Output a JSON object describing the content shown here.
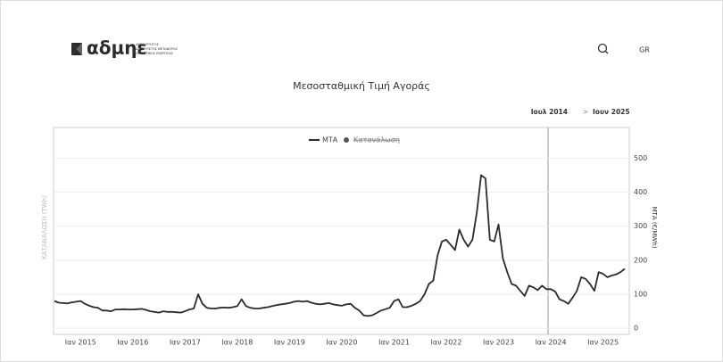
{
  "header": {
    "logo": "αδμηε",
    "logo_lines": [
      "ΑΝΕΞΑΡΤΗΤΟΣ",
      "ΔΙΑΧΕΙΡΙΣΤΗΣ ΜΕΤΑΦΟΡΑΣ",
      "ΗΛΕΚΤΡΙΚΗΣ ΕΝΕΡΓΕΙΑΣ"
    ],
    "language": "GR"
  },
  "range": {
    "from": "Ιουλ 2014",
    "separator": ">",
    "to": "Ιουν 2025"
  },
  "chart_data": {
    "type": "line",
    "title": "Μεσοσταθμική Τιμή Αγοράς",
    "y_label": "ΜΤΑ (€/MWh)",
    "y2_label": "ΚΑΤΑΝΑΛΩΣΗ (TWh)",
    "hidden_series": [
      "Κατανάλωση"
    ],
    "ylim": [
      -18,
      590
    ],
    "yticks": [
      0,
      100,
      200,
      300,
      400,
      500
    ],
    "grid": true,
    "categories": [
      null,
      null,
      null,
      null,
      null,
      null,
      "Ιαν 2015",
      null,
      null,
      null,
      null,
      null,
      null,
      null,
      null,
      null,
      null,
      null,
      "Ιαν 2016",
      null,
      null,
      null,
      null,
      null,
      null,
      null,
      null,
      null,
      null,
      null,
      "Ιαν 2017",
      null,
      null,
      null,
      null,
      null,
      null,
      null,
      null,
      null,
      null,
      null,
      "Ιαν 2018",
      null,
      null,
      null,
      null,
      null,
      null,
      null,
      null,
      null,
      null,
      null,
      "Ιαν 2019",
      null,
      null,
      null,
      null,
      null,
      null,
      null,
      null,
      null,
      null,
      null,
      "Ιαν 2020",
      null,
      null,
      null,
      null,
      null,
      null,
      null,
      null,
      null,
      null,
      null,
      "Ιαν 2021",
      null,
      null,
      null,
      null,
      null,
      null,
      null,
      null,
      null,
      null,
      null,
      "Ιαν 2022",
      null,
      null,
      null,
      null,
      null,
      null,
      null,
      null,
      null,
      null,
      null,
      "Ιαν 2023",
      null,
      null,
      null,
      null,
      null,
      null,
      null,
      null,
      null,
      null,
      null,
      "Ιαν 2024",
      null,
      null,
      null,
      null,
      null,
      null,
      null,
      null,
      null,
      null,
      null,
      "Ιαν 2025",
      null,
      null,
      null,
      null,
      null
    ],
    "series": [
      {
        "name": "ΜΤΑ",
        "color": "#2b2b2b",
        "values": [
          80,
          75,
          74,
          73,
          76,
          78,
          80,
          72,
          66,
          62,
          60,
          52,
          52,
          50,
          55,
          55,
          56,
          55,
          55,
          56,
          57,
          54,
          50,
          48,
          46,
          50,
          48,
          48,
          47,
          46,
          50,
          55,
          58,
          100,
          72,
          60,
          58,
          58,
          60,
          61,
          60,
          62,
          65,
          85,
          65,
          60,
          58,
          58,
          60,
          62,
          65,
          68,
          70,
          72,
          74,
          78,
          80,
          78,
          80,
          75,
          72,
          70,
          72,
          74,
          70,
          68,
          66,
          70,
          72,
          60,
          52,
          38,
          36,
          38,
          45,
          52,
          56,
          60,
          80,
          85,
          62,
          62,
          66,
          72,
          80,
          100,
          130,
          140,
          215,
          255,
          260,
          245,
          230,
          290,
          260,
          240,
          260,
          340,
          450,
          440,
          260,
          255,
          305,
          205,
          165,
          130,
          125,
          110,
          95,
          125,
          120,
          112,
          125,
          115,
          115,
          108,
          85,
          80,
          72,
          90,
          110,
          150,
          145,
          130,
          110,
          165,
          160,
          150,
          155,
          158,
          165,
          175
        ]
      }
    ]
  }
}
